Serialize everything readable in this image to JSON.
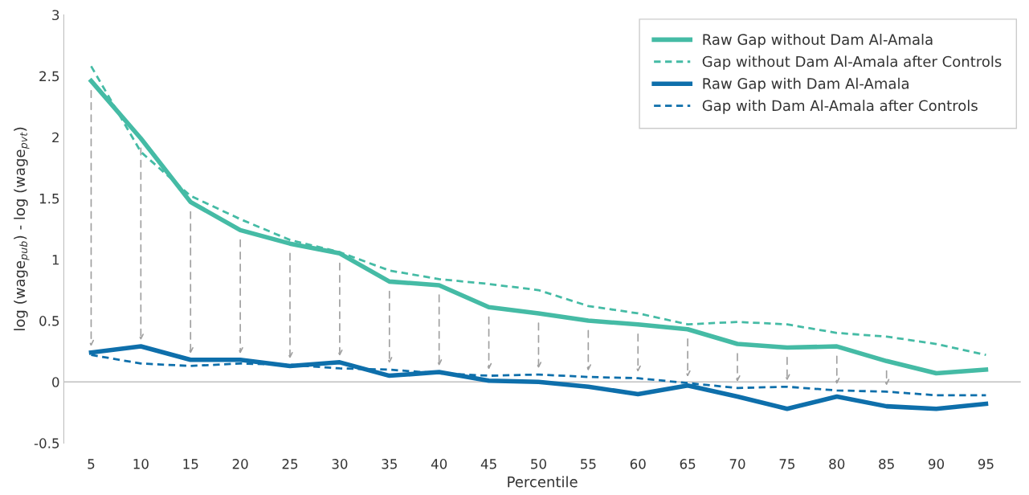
{
  "chart_data": {
    "type": "line",
    "xlabel": "Percentile",
    "ylabel": "log (wage$_{pub}$) - log (wage$_{pvt}$)",
    "categories": [
      "5",
      "10",
      "15",
      "20",
      "25",
      "30",
      "35",
      "40",
      "45",
      "50",
      "55",
      "60",
      "65",
      "70",
      "75",
      "80",
      "85",
      "90",
      "95"
    ],
    "series": [
      {
        "name": "Raw Gap without Dam Al-Amala",
        "color": "#45bba5",
        "line_style": "solid",
        "values": [
          2.46,
          1.99,
          1.47,
          1.24,
          1.13,
          1.05,
          0.82,
          0.79,
          0.61,
          0.56,
          0.5,
          0.47,
          0.43,
          0.31,
          0.28,
          0.29,
          0.17,
          0.07,
          0.1
        ]
      },
      {
        "name": "Gap without Dam Al-Amala after Controls",
        "color": "#45bba5",
        "line_style": "dashed",
        "values": [
          2.58,
          1.88,
          1.52,
          1.33,
          1.16,
          1.06,
          0.91,
          0.84,
          0.8,
          0.75,
          0.62,
          0.56,
          0.47,
          0.49,
          0.47,
          0.4,
          0.37,
          0.31,
          0.22
        ]
      },
      {
        "name": "Raw Gap with Dam Al-Amala",
        "color": "#0e6fab",
        "line_style": "solid",
        "values": [
          0.24,
          0.29,
          0.18,
          0.18,
          0.13,
          0.16,
          0.05,
          0.08,
          0.01,
          0.0,
          -0.04,
          -0.1,
          -0.03,
          -0.12,
          -0.22,
          -0.12,
          -0.2,
          -0.22,
          -0.18
        ]
      },
      {
        "name": "Gap with Dam Al-Amala after Controls",
        "color": "#0e6fab",
        "line_style": "dashed",
        "values": [
          0.22,
          0.15,
          0.13,
          0.15,
          0.14,
          0.11,
          0.1,
          0.07,
          0.05,
          0.06,
          0.04,
          0.03,
          -0.01,
          -0.05,
          -0.04,
          -0.07,
          -0.08,
          -0.11,
          -0.11
        ]
      }
    ],
    "ylim": [
      -0.5,
      3
    ],
    "yticks": [
      -0.5,
      0,
      0.5,
      1,
      1.5,
      2,
      2.5,
      3
    ],
    "ref_lines": [
      {
        "axis": "y",
        "value": 0,
        "color": "#bfbfbf"
      }
    ],
    "grid": false,
    "legend": "top right",
    "marker": "none"
  }
}
